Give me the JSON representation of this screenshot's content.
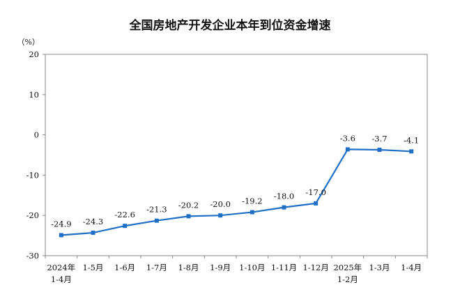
{
  "chart_data": {
    "type": "line",
    "title": "全国房地产开发企业本年到位资金增速",
    "unit": "（%）",
    "ylim": [
      -30,
      20
    ],
    "yticks": [
      20,
      10,
      0,
      -10,
      -20,
      -30
    ],
    "ytick_labels": [
      "20",
      "10",
      "0",
      "-10",
      "-20",
      "-30"
    ],
    "categories": [
      [
        "2024年",
        "1-4月"
      ],
      [
        "1-5月"
      ],
      [
        "1-6月"
      ],
      [
        "1-7月"
      ],
      [
        "1-8月"
      ],
      [
        "1-9月"
      ],
      [
        "1-10月"
      ],
      [
        "1-11月"
      ],
      [
        "1-12月"
      ],
      [
        "2025年",
        "1-2月"
      ],
      [
        "1-3月"
      ],
      [
        "1-4月"
      ]
    ],
    "series": [
      {
        "values": [
          -24.9,
          -24.3,
          -22.6,
          -21.3,
          -20.2,
          -20.0,
          -19.2,
          -18.0,
          -17.0,
          -3.6,
          -3.7,
          -4.1
        ],
        "data_labels": [
          "-24.9",
          "-24.3",
          "-22.6",
          "-21.3",
          "-20.2",
          "-20.0",
          "-19.2",
          "-18.0",
          "-17.0",
          "-3.6",
          "-3.7",
          "-4.1"
        ]
      }
    ],
    "grid": false,
    "legend": "none",
    "line_color": "#1f6fc5",
    "axis_color": "#888888"
  }
}
